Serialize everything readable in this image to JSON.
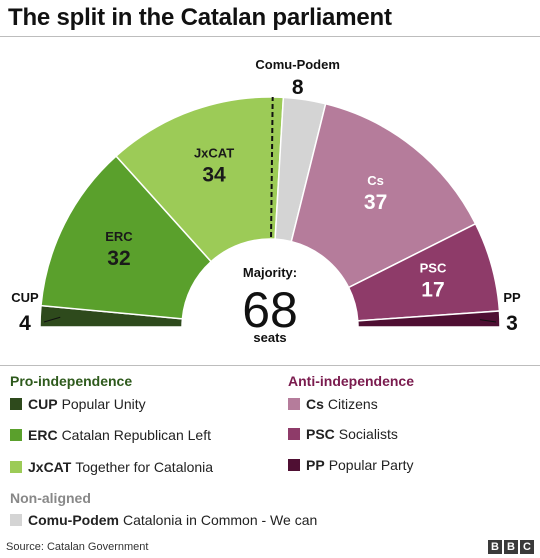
{
  "title": "The split in the Catalan parliament",
  "chart_data": {
    "type": "pie",
    "subtype": "semicircle-parliament",
    "total_seats": 135,
    "majority": {
      "label": "Majority:",
      "value": 68,
      "unit": "seats"
    },
    "parties": [
      {
        "abbr": "CUP",
        "name": "Popular Unity",
        "seats": 4,
        "color": "#2e4a1c",
        "bloc": "pro"
      },
      {
        "abbr": "ERC",
        "name": "Catalan Republican Left",
        "seats": 32,
        "color": "#5aa02c",
        "bloc": "pro"
      },
      {
        "abbr": "JxCAT",
        "name": "Together for Catalonia",
        "seats": 34,
        "color": "#9ccb57",
        "bloc": "pro"
      },
      {
        "abbr": "Comu-Podem",
        "name": "Catalonia in Common - We can",
        "seats": 8,
        "color": "#d4d4d4",
        "bloc": "non"
      },
      {
        "abbr": "Cs",
        "name": "Citizens",
        "seats": 37,
        "color": "#b57c9b",
        "bloc": "anti"
      },
      {
        "abbr": "PSC",
        "name": "Socialists",
        "seats": 17,
        "color": "#8e3b69",
        "bloc": "anti"
      },
      {
        "abbr": "PP",
        "name": "Popular Party",
        "seats": 3,
        "color": "#4f0f33",
        "bloc": "anti"
      }
    ]
  },
  "legend": {
    "pro": {
      "title": "Pro-independence",
      "color": "#2e5a1c"
    },
    "anti": {
      "title": "Anti-independence",
      "color": "#7a1b4e"
    },
    "non": {
      "title": "Non-aligned",
      "color": "#888888"
    }
  },
  "footer": {
    "source": "Source: Catalan Government",
    "logo": [
      "B",
      "B",
      "C"
    ]
  }
}
